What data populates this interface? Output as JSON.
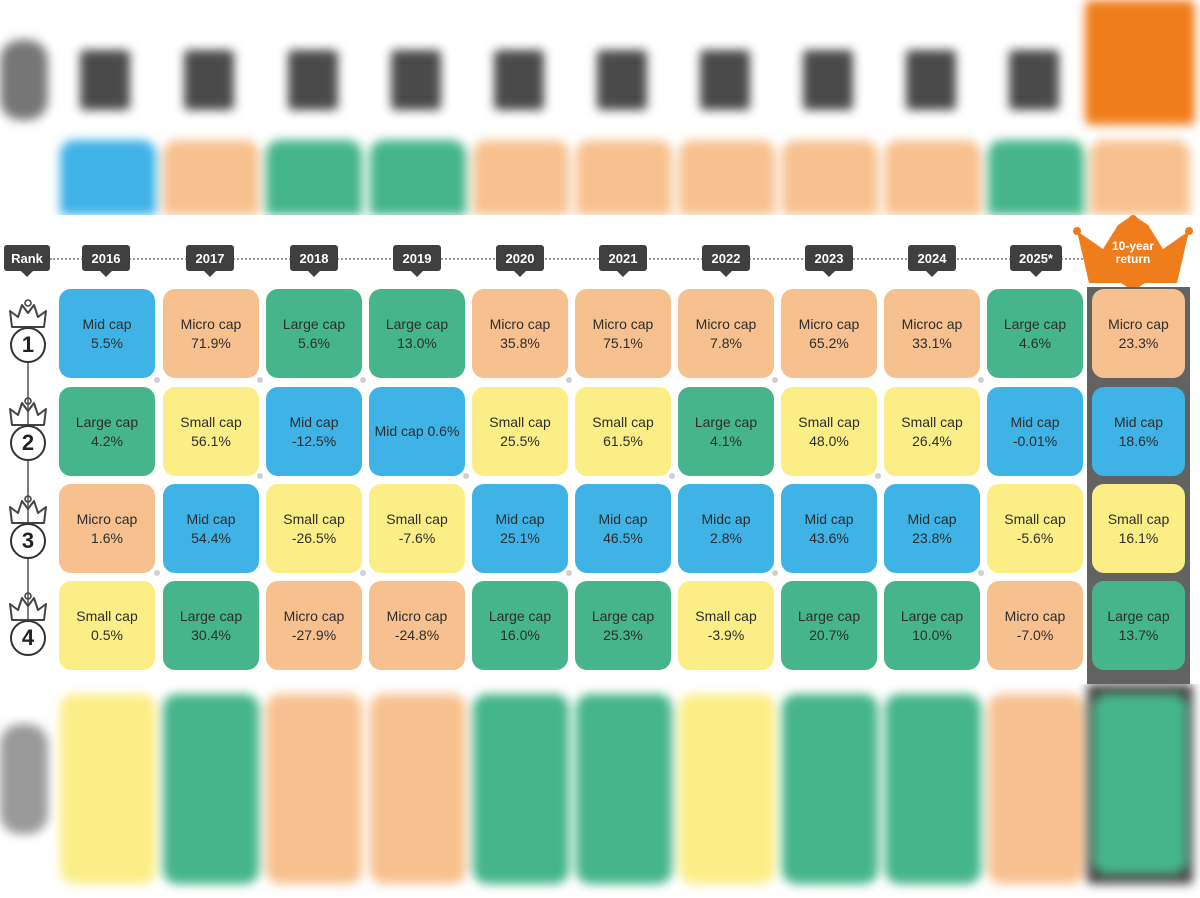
{
  "header": {
    "rank_label": "Rank",
    "years": [
      "2016",
      "2017",
      "2018",
      "2019",
      "2020",
      "2021",
      "2022",
      "2023",
      "2024",
      "2025*"
    ],
    "ten_year_label": "10-year return"
  },
  "ranks": [
    "1",
    "2",
    "3",
    "4"
  ],
  "colors": {
    "Large cap": "#46b58b",
    "Mid cap": "#3fb2e6",
    "Micro cap": "#f7c18f",
    "Small cap": "#fbee87",
    "crown": "#f07d1c",
    "tag": "#3f3f3f"
  },
  "chart_data": {
    "type": "table",
    "columns": [
      "2016",
      "2017",
      "2018",
      "2019",
      "2020",
      "2021",
      "2022",
      "2023",
      "2024",
      "2025*",
      "10-year return"
    ],
    "rows": [
      {
        "rank": "1",
        "cells": [
          {
            "label": "Mid cap",
            "value": "5.5%",
            "category": "Mid cap"
          },
          {
            "label": "Micro cap",
            "value": "71.9%",
            "category": "Micro cap"
          },
          {
            "label": "Large cap",
            "value": "5.6%",
            "category": "Large cap"
          },
          {
            "label": "Large cap",
            "value": "13.0%",
            "category": "Large cap"
          },
          {
            "label": "Micro cap",
            "value": "35.8%",
            "category": "Micro cap"
          },
          {
            "label": "Micro cap",
            "value": "75.1%",
            "category": "Micro cap"
          },
          {
            "label": "Micro cap",
            "value": "7.8%",
            "category": "Micro cap"
          },
          {
            "label": "Micro cap",
            "value": "65.2%",
            "category": "Micro cap"
          },
          {
            "label": "Microc ap",
            "value": "33.1%",
            "category": "Micro cap"
          },
          {
            "label": "Large cap",
            "value": "4.6%",
            "category": "Large cap"
          },
          {
            "label": "Micro cap",
            "value": "23.3%",
            "category": "Micro cap"
          }
        ]
      },
      {
        "rank": "2",
        "cells": [
          {
            "label": "Large cap",
            "value": "4.2%",
            "category": "Large cap"
          },
          {
            "label": "Small cap",
            "value": "56.1%",
            "category": "Small cap"
          },
          {
            "label": "Mid cap",
            "value": "-12.5%",
            "category": "Mid cap"
          },
          {
            "label": "Mid cap 0.6%",
            "value": "",
            "category": "Mid cap"
          },
          {
            "label": "Small cap",
            "value": "25.5%",
            "category": "Small cap"
          },
          {
            "label": "Small cap",
            "value": "61.5%",
            "category": "Small cap"
          },
          {
            "label": "Large cap",
            "value": "4.1%",
            "category": "Large cap"
          },
          {
            "label": "Small cap",
            "value": "48.0%",
            "category": "Small cap"
          },
          {
            "label": "Small cap",
            "value": "26.4%",
            "category": "Small cap"
          },
          {
            "label": "Mid cap",
            "value": "-0.01%",
            "category": "Mid cap"
          },
          {
            "label": "Mid cap",
            "value": "18.6%",
            "category": "Mid cap"
          }
        ]
      },
      {
        "rank": "3",
        "cells": [
          {
            "label": "Micro cap",
            "value": "1.6%",
            "category": "Micro cap"
          },
          {
            "label": "Mid cap",
            "value": "54.4%",
            "category": "Mid cap"
          },
          {
            "label": "Small cap",
            "value": "-26.5%",
            "category": "Small cap"
          },
          {
            "label": "Small cap",
            "value": "-7.6%",
            "category": "Small cap"
          },
          {
            "label": "Mid cap",
            "value": "25.1%",
            "category": "Mid cap"
          },
          {
            "label": "Mid cap",
            "value": "46.5%",
            "category": "Mid cap"
          },
          {
            "label": "Midc ap",
            "value": "2.8%",
            "category": "Mid cap"
          },
          {
            "label": "Mid cap",
            "value": "43.6%",
            "category": "Mid cap"
          },
          {
            "label": "Mid cap",
            "value": "23.8%",
            "category": "Mid cap"
          },
          {
            "label": "Small cap",
            "value": "-5.6%",
            "category": "Small cap"
          },
          {
            "label": "Small cap",
            "value": "16.1%",
            "category": "Small cap"
          }
        ]
      },
      {
        "rank": "4",
        "cells": [
          {
            "label": "Small cap",
            "value": "0.5%",
            "category": "Small cap"
          },
          {
            "label": "Large cap",
            "value": "30.4%",
            "category": "Large cap"
          },
          {
            "label": "Micro cap",
            "value": "-27.9%",
            "category": "Micro cap"
          },
          {
            "label": "Micro cap",
            "value": "-24.8%",
            "category": "Micro cap"
          },
          {
            "label": "Large cap",
            "value": "16.0%",
            "category": "Large cap"
          },
          {
            "label": "Large cap",
            "value": "25.3%",
            "category": "Large cap"
          },
          {
            "label": "Small cap",
            "value": "-3.9%",
            "category": "Small cap"
          },
          {
            "label": "Large cap",
            "value": "20.7%",
            "category": "Large cap"
          },
          {
            "label": "Large cap",
            "value": "10.0%",
            "category": "Large cap"
          },
          {
            "label": "Micro cap",
            "value": "-7.0%",
            "category": "Micro cap"
          },
          {
            "label": "Large cap",
            "value": "13.7%",
            "category": "Large cap"
          }
        ]
      }
    ]
  }
}
